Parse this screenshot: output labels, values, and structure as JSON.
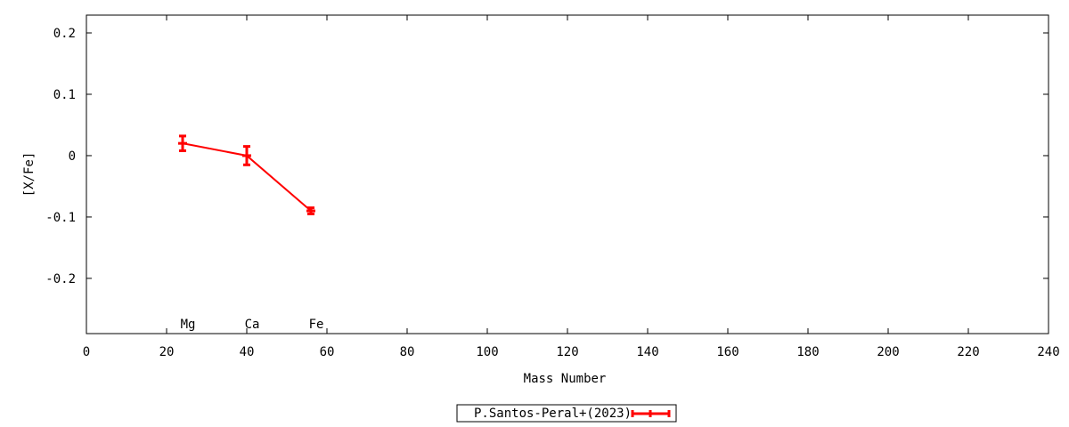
{
  "chart_data": {
    "type": "line",
    "xlabel": "Mass Number",
    "ylabel": "[X/Fe]",
    "xlim": [
      0,
      240
    ],
    "ylim": [
      -0.29,
      0.229
    ],
    "xticks": [
      0,
      20,
      40,
      60,
      80,
      100,
      120,
      140,
      160,
      180,
      200,
      220,
      240
    ],
    "yticks": [
      0.2,
      0.1,
      0,
      -0.1,
      -0.2
    ],
    "ytick_labels": [
      "0.2",
      "0.1",
      "0",
      "-0.1",
      "-0.2"
    ],
    "grid": false,
    "legend_position": "bottom-center",
    "series": [
      {
        "name": "P.Santos-Peral+(2023)",
        "color": "#ff0000",
        "x": [
          24,
          40,
          56
        ],
        "y": [
          0.02,
          0.0,
          -0.09
        ],
        "yerr": [
          0.012,
          0.015,
          0.005
        ],
        "labels": [
          "Mg",
          "Ca",
          "Fe"
        ]
      }
    ]
  }
}
